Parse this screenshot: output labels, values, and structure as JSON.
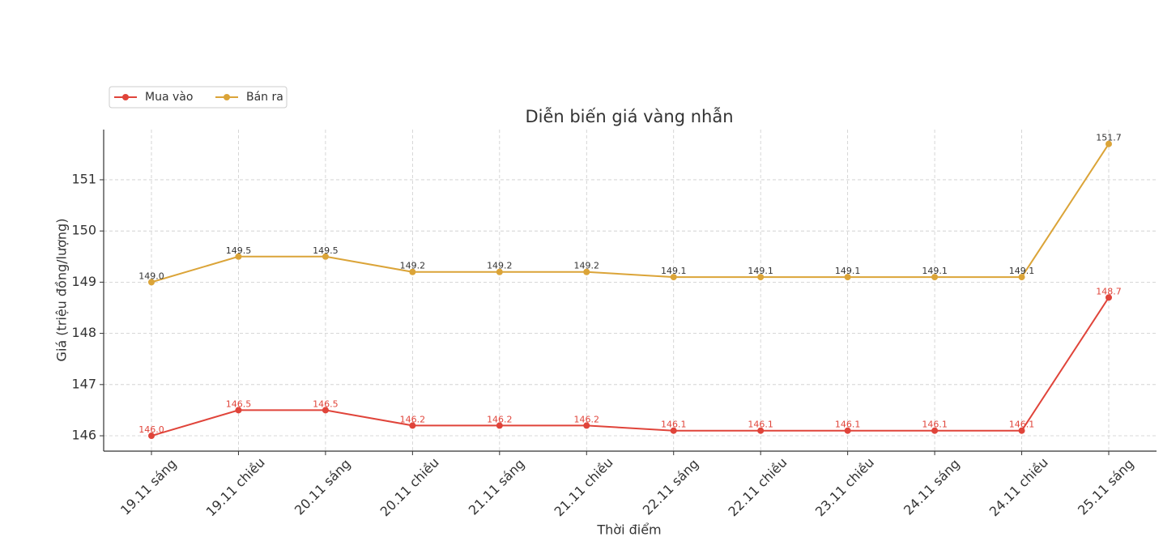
{
  "chart_data": {
    "type": "line",
    "title": "Diễn biến giá vàng nhẫn",
    "x_label": "Thời điểm",
    "y_label": "Giá (triệu đồng/lượng)",
    "categories": [
      "19.11 sáng",
      "19.11 chiều",
      "20.11 sáng",
      "20.11 chiều",
      "21.11 sáng",
      "21.11 chiều",
      "22.11 sáng",
      "22.11 chiều",
      "23.11 chiều",
      "24.11 sáng",
      "24.11 chiều",
      "25.11 sáng"
    ],
    "series": [
      {
        "name": "Mua vào",
        "color": "#e0443a",
        "label_color": "#e0443a",
        "values": [
          146.0,
          146.5,
          146.5,
          146.2,
          146.2,
          146.2,
          146.1,
          146.1,
          146.1,
          146.1,
          146.1,
          148.7
        ],
        "value_labels": [
          "146.0",
          "146.5",
          "146.5",
          "146.2",
          "146.2",
          "146.2",
          "146.1",
          "146.1",
          "146.1",
          "146.1",
          "146.1",
          "148.7"
        ]
      },
      {
        "name": "Bán ra",
        "color": "#dba438",
        "label_color": "#333333",
        "values": [
          149.0,
          149.5,
          149.5,
          149.2,
          149.2,
          149.2,
          149.1,
          149.1,
          149.1,
          149.1,
          149.1,
          151.7
        ],
        "value_labels": [
          "149.0",
          "149.5",
          "149.5",
          "149.2",
          "149.2",
          "149.2",
          "149.1",
          "149.1",
          "149.1",
          "149.1",
          "149.1",
          "151.7"
        ]
      }
    ],
    "ylim": [
      145.7,
      151.98
    ],
    "yticks": [
      146,
      147,
      148,
      149,
      150,
      151
    ],
    "grid": true,
    "legend": "upper left"
  }
}
